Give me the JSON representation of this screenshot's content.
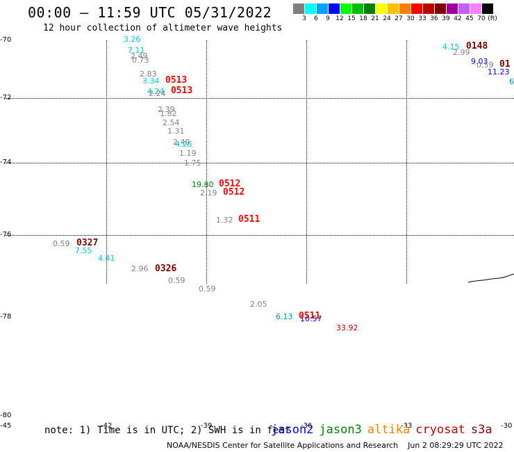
{
  "header": {
    "title": "00:00 — 11:59 UTC 05/31/2022",
    "subtitle": "12 hour collection of altimeter wave heights"
  },
  "color_scale": {
    "unit": "(ft)",
    "bins": [
      {
        "label": "3",
        "color": "#808080"
      },
      {
        "label": "6",
        "color": "#00ffff"
      },
      {
        "label": "9",
        "color": "#00a0ff"
      },
      {
        "label": "12",
        "color": "#0000ff"
      },
      {
        "label": "15",
        "color": "#00ff00"
      },
      {
        "label": "18",
        "color": "#00c000"
      },
      {
        "label": "21",
        "color": "#008000"
      },
      {
        "label": "24",
        "color": "#ffff00"
      },
      {
        "label": "27",
        "color": "#ffc000"
      },
      {
        "label": "30",
        "color": "#ff8000"
      },
      {
        "label": "33",
        "color": "#ff0000"
      },
      {
        "label": "36",
        "color": "#c00000"
      },
      {
        "label": "39",
        "color": "#800000"
      },
      {
        "label": "42",
        "color": "#a000a0"
      },
      {
        "label": "45",
        "color": "#c060ff"
      },
      {
        "label": "70",
        "color": "#ff80ff"
      },
      {
        "label": "",
        "color": "#000000"
      }
    ]
  },
  "axes": {
    "lat_labels": [
      "-70",
      "-72",
      "-74",
      "-76",
      "-78",
      "-80"
    ],
    "lon_labels": [
      "-45",
      "-42",
      "-39",
      "-36",
      "-33",
      "-30"
    ]
  },
  "observations": [
    {
      "value": "3.26",
      "color": "#00c8e8"
    },
    {
      "value": "7.11",
      "color": "#00c8e8"
    },
    {
      "value": "2.49",
      "color": "#808080"
    },
    {
      "value": "0.73",
      "color": "#808080"
    },
    {
      "value": "2.83",
      "color": "#808080"
    },
    {
      "value": "3.34",
      "color": "#00c8e8"
    },
    {
      "value": "4.24",
      "color": "#00c8e8"
    },
    {
      "value": "2.24",
      "color": "#808080"
    },
    {
      "value": "2.39",
      "color": "#808080"
    },
    {
      "value": "1.82",
      "color": "#808080"
    },
    {
      "value": "2.54",
      "color": "#808080"
    },
    {
      "value": "1.31",
      "color": "#808080"
    },
    {
      "value": "2.49",
      "color": "#808080"
    },
    {
      "value": "4.26",
      "color": "#00c8e8"
    },
    {
      "value": "1.19",
      "color": "#808080"
    },
    {
      "value": "1.75",
      "color": "#808080"
    },
    {
      "value": "19.80",
      "color": "#008000"
    },
    {
      "value": "2.19",
      "color": "#808080"
    },
    {
      "value": "1.32",
      "color": "#808080"
    },
    {
      "value": "0.59",
      "color": "#808080"
    },
    {
      "value": "7.55",
      "color": "#00c8e8"
    },
    {
      "value": "4.41",
      "color": "#00c8e8"
    },
    {
      "value": "2.96",
      "color": "#808080"
    },
    {
      "value": "0.59",
      "color": "#808080"
    },
    {
      "value": "0.59",
      "color": "#808080"
    },
    {
      "value": "2.05",
      "color": "#808080"
    },
    {
      "value": "6.13",
      "color": "#0090d0"
    },
    {
      "value": "10.57",
      "color": "#0000ff"
    },
    {
      "value": "33.92",
      "color": "#c00000"
    },
    {
      "value": "4.15",
      "color": "#00c8e8"
    },
    {
      "value": "2.99",
      "color": "#808080"
    },
    {
      "value": "9.03",
      "color": "#0000ff"
    },
    {
      "value": "0.59",
      "color": "#808080"
    },
    {
      "value": "11.23",
      "color": "#0000ff"
    },
    {
      "value": "6",
      "color": "#0090d0"
    }
  ],
  "pass_times": [
    {
      "label": "0513",
      "color": "#ff0000"
    },
    {
      "label": "0513",
      "color": "#ff0000"
    },
    {
      "label": "0512",
      "color": "#ff0000"
    },
    {
      "label": "0512",
      "color": "#ff0000"
    },
    {
      "label": "0511",
      "color": "#ff0000"
    },
    {
      "label": "0327",
      "color": "#800000"
    },
    {
      "label": "0326",
      "color": "#800000"
    },
    {
      "label": "0511",
      "color": "#ff0000"
    },
    {
      "label": "0148",
      "color": "#800000"
    },
    {
      "label": "01",
      "color": "#800000"
    }
  ],
  "note": "note: 1) Time is in UTC; 2) SWH is in feet",
  "satellites": [
    {
      "name": "jason2",
      "color": "#0000ff"
    },
    {
      "name": "jason3",
      "color": "#008000"
    },
    {
      "name": "altika",
      "color": "#ff8000"
    },
    {
      "name": "cryosat",
      "color": "#c00000"
    },
    {
      "name": "s3a",
      "color": "#800000"
    }
  ],
  "footer": {
    "credit": "NOAA/NESDIS Center for Satellite Applications and Research",
    "timestamp": "Jun  2 08:29:29 UTC 2022"
  }
}
